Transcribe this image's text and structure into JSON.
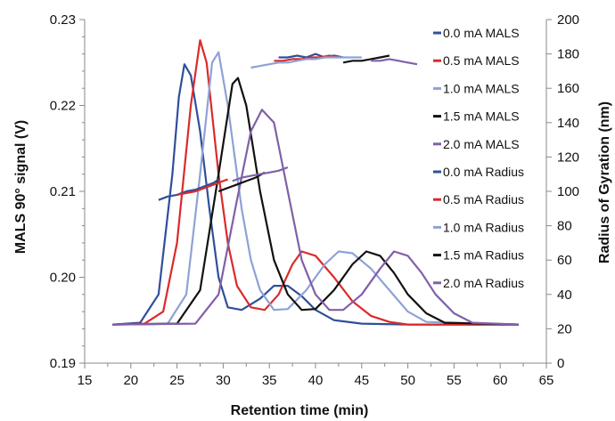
{
  "chart_data": {
    "type": "line",
    "title": "",
    "xlabel": "Retention time (min)",
    "ylabel_left": "MALS 90° signal (V)",
    "ylabel_right": "Radius of Gyration (nm)",
    "xlim": [
      15,
      65
    ],
    "ylim_left": [
      0.19,
      0.23
    ],
    "ylim_right": [
      0,
      200
    ],
    "x_ticks": [
      "15",
      "20",
      "25",
      "30",
      "35",
      "40",
      "45",
      "50",
      "55",
      "60",
      "65"
    ],
    "y_left_ticks": [
      "0.19",
      "0.20",
      "0.21",
      "0.22",
      "0.23"
    ],
    "y_right_ticks": [
      "0",
      "20",
      "40",
      "60",
      "80",
      "100",
      "120",
      "140",
      "160",
      "180",
      "200"
    ],
    "grid": false,
    "legend_position": "right",
    "series": [
      {
        "name": "0.0 mA MALS",
        "axis": "left",
        "color": "#2F4F9A",
        "x": [
          18,
          21,
          23,
          24.5,
          25.2,
          25.8,
          26.5,
          27.5,
          28.5,
          29.5,
          30.5,
          32,
          34,
          35.5,
          37,
          38.5,
          40,
          42,
          45,
          50,
          62
        ],
        "y": [
          0.1945,
          0.1947,
          0.198,
          0.212,
          0.221,
          0.2248,
          0.2235,
          0.217,
          0.208,
          0.2,
          0.1965,
          0.1962,
          0.1975,
          0.199,
          0.199,
          0.1978,
          0.1962,
          0.195,
          0.1946,
          0.1945,
          0.1945
        ]
      },
      {
        "name": "0.5 mA MALS",
        "axis": "left",
        "color": "#D92B2B",
        "x": [
          18,
          21.5,
          23.5,
          25,
          26.5,
          27.5,
          28.2,
          29.5,
          30.5,
          31.5,
          33,
          34.5,
          36,
          37.5,
          38.5,
          40,
          42,
          44,
          46,
          48,
          50,
          62
        ],
        "y": [
          0.1945,
          0.1946,
          0.196,
          0.204,
          0.22,
          0.2276,
          0.225,
          0.212,
          0.204,
          0.199,
          0.1965,
          0.1962,
          0.198,
          0.2015,
          0.203,
          0.2025,
          0.2,
          0.1972,
          0.1955,
          0.1948,
          0.1945,
          0.1945
        ]
      },
      {
        "name": "1.0 mA MALS",
        "axis": "left",
        "color": "#8EA2D6",
        "x": [
          18,
          24,
          26,
          27.5,
          28.8,
          29.5,
          30.5,
          32,
          33,
          34,
          35.5,
          37,
          39,
          41,
          42.5,
          44,
          46,
          48,
          50,
          52,
          62
        ],
        "y": [
          0.1945,
          0.1946,
          0.198,
          0.212,
          0.225,
          0.2262,
          0.22,
          0.208,
          0.202,
          0.1985,
          0.1962,
          0.1963,
          0.1985,
          0.2015,
          0.203,
          0.2028,
          0.201,
          0.1985,
          0.196,
          0.1948,
          0.1945
        ]
      },
      {
        "name": "1.5 mA MALS",
        "axis": "left",
        "color": "#111111",
        "x": [
          18,
          25,
          27.5,
          29.5,
          31,
          31.6,
          32.5,
          34,
          35.5,
          37,
          38.5,
          40,
          42,
          44,
          45.5,
          47,
          48.5,
          50,
          52,
          54,
          62
        ],
        "y": [
          0.1945,
          0.1946,
          0.1985,
          0.212,
          0.2225,
          0.2232,
          0.22,
          0.21,
          0.202,
          0.198,
          0.1962,
          0.1963,
          0.1985,
          0.2015,
          0.203,
          0.2025,
          0.2005,
          0.198,
          0.1958,
          0.1947,
          0.1945
        ]
      },
      {
        "name": "2.0 mA MALS",
        "axis": "left",
        "color": "#8060A8",
        "x": [
          18,
          27,
          29.5,
          31.5,
          33,
          34.2,
          35.5,
          37,
          38.5,
          40,
          41.5,
          43,
          45,
          47,
          48.5,
          50,
          51.5,
          53,
          55,
          57,
          62
        ],
        "y": [
          0.1945,
          0.1946,
          0.198,
          0.209,
          0.217,
          0.2195,
          0.218,
          0.21,
          0.202,
          0.198,
          0.1962,
          0.1962,
          0.198,
          0.201,
          0.203,
          0.2025,
          0.2005,
          0.198,
          0.1958,
          0.1947,
          0.1945
        ]
      },
      {
        "name": "0.0 mA Radius",
        "axis": "right",
        "color": "#2F4F9A",
        "x": [
          23,
          24,
          25,
          26,
          27,
          28,
          29,
          29.5,
          36,
          37,
          38,
          39,
          40,
          41,
          42,
          43
        ],
        "y": [
          95,
          97,
          98,
          100,
          101,
          103,
          105,
          107,
          178,
          178,
          179,
          178,
          180,
          178,
          179,
          178
        ]
      },
      {
        "name": "0.5 mA Radius",
        "axis": "right",
        "color": "#D92B2B",
        "x": [
          25,
          26,
          27,
          28,
          29,
          30,
          30.5,
          35.5,
          36.5,
          37.5,
          38.5,
          39.5,
          40.5,
          41.5,
          42.5
        ],
        "y": [
          98,
          99,
          100,
          102,
          104,
          106,
          107,
          176,
          176,
          177,
          177,
          178,
          178,
          179,
          178
        ]
      },
      {
        "name": "1.0 mA Radius",
        "axis": "right",
        "color": "#8EA2D6",
        "x": [
          33,
          34,
          35,
          36,
          37,
          38,
          39,
          40,
          41,
          42,
          43,
          44,
          45
        ],
        "y": [
          172,
          173,
          174,
          175,
          175,
          176,
          177,
          177,
          178,
          178,
          178,
          178,
          178
        ]
      },
      {
        "name": "1.5 mA Radius",
        "axis": "right",
        "color": "#111111",
        "x": [
          29.5,
          30.5,
          31.5,
          32.5,
          33.5,
          34.5,
          43,
          44,
          45,
          46,
          47,
          48
        ],
        "y": [
          100,
          102,
          104,
          106,
          108,
          111,
          175,
          176,
          176,
          177,
          178,
          179
        ]
      },
      {
        "name": "2.0 mA Radius",
        "axis": "right",
        "color": "#8060A8",
        "x": [
          31,
          32,
          33,
          34,
          35,
          36,
          37,
          46,
          47,
          48,
          49,
          50,
          51
        ],
        "y": [
          106,
          108,
          109,
          110,
          111,
          112,
          114,
          176,
          176,
          177,
          176,
          175,
          174
        ]
      }
    ]
  }
}
